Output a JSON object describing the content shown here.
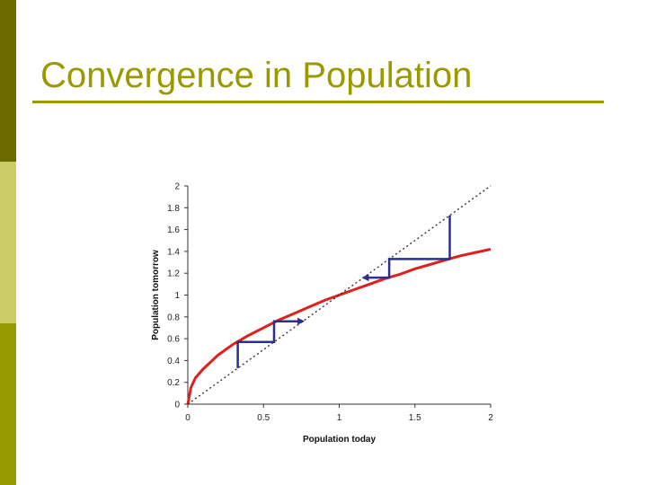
{
  "slide": {
    "title": "Convergence in Population",
    "accent_color": "#999900",
    "sidebar_colors": [
      "#6b6b00",
      "#cccc66",
      "#999900"
    ]
  },
  "chart_data": {
    "type": "line",
    "title": "",
    "xlabel": "Population today",
    "ylabel": "Population tomorrow",
    "xlim": [
      0,
      2
    ],
    "ylim": [
      0,
      2
    ],
    "x_ticks": [
      0,
      0.5,
      1,
      1.5,
      2
    ],
    "x_tick_labels": [
      "0",
      "0.5",
      "1",
      "1.5",
      "2"
    ],
    "y_ticks": [
      0,
      0.2,
      0.4,
      0.6,
      0.8,
      1,
      1.2,
      1.4,
      1.6,
      1.8,
      2
    ],
    "y_tick_labels": [
      "0",
      "0.2",
      "0.4",
      "0.6",
      "0.8",
      "1",
      "1.2",
      "1.4",
      "1.6",
      "1.8",
      "2"
    ],
    "grid": false,
    "series": [
      {
        "style": "solid",
        "color": "#e0201c",
        "x": [
          0,
          0.02,
          0.05,
          0.1,
          0.2,
          0.3,
          0.4,
          0.5,
          0.6,
          0.7,
          0.8,
          0.9,
          1,
          1.1,
          1.2,
          1.3,
          1.4,
          1.5,
          1.6,
          1.7,
          1.8,
          1.9,
          2
        ],
        "y": [
          0,
          0.15,
          0.24,
          0.32,
          0.45,
          0.55,
          0.63,
          0.7,
          0.77,
          0.83,
          0.89,
          0.95,
          1.0,
          1.05,
          1.1,
          1.15,
          1.19,
          1.24,
          1.28,
          1.32,
          1.36,
          1.39,
          1.42
        ]
      },
      {
        "style": "dotted",
        "color": "#333333",
        "x": [
          0,
          2
        ],
        "y": [
          0,
          2
        ]
      }
    ],
    "annotations": [
      {
        "kind": "cobweb",
        "color": "#2e2e8f",
        "points": [
          [
            0.33,
            0.33
          ],
          [
            0.33,
            0.57
          ],
          [
            0.57,
            0.57
          ],
          [
            0.57,
            0.76
          ],
          [
            0.76,
            0.76
          ]
        ],
        "arrow_at_end": true
      },
      {
        "kind": "cobweb",
        "color": "#2e2e8f",
        "points": [
          [
            1.73,
            1.73
          ],
          [
            1.73,
            1.33
          ],
          [
            1.33,
            1.33
          ],
          [
            1.33,
            1.16
          ],
          [
            1.16,
            1.16
          ]
        ],
        "arrow_at_end": true
      }
    ]
  }
}
